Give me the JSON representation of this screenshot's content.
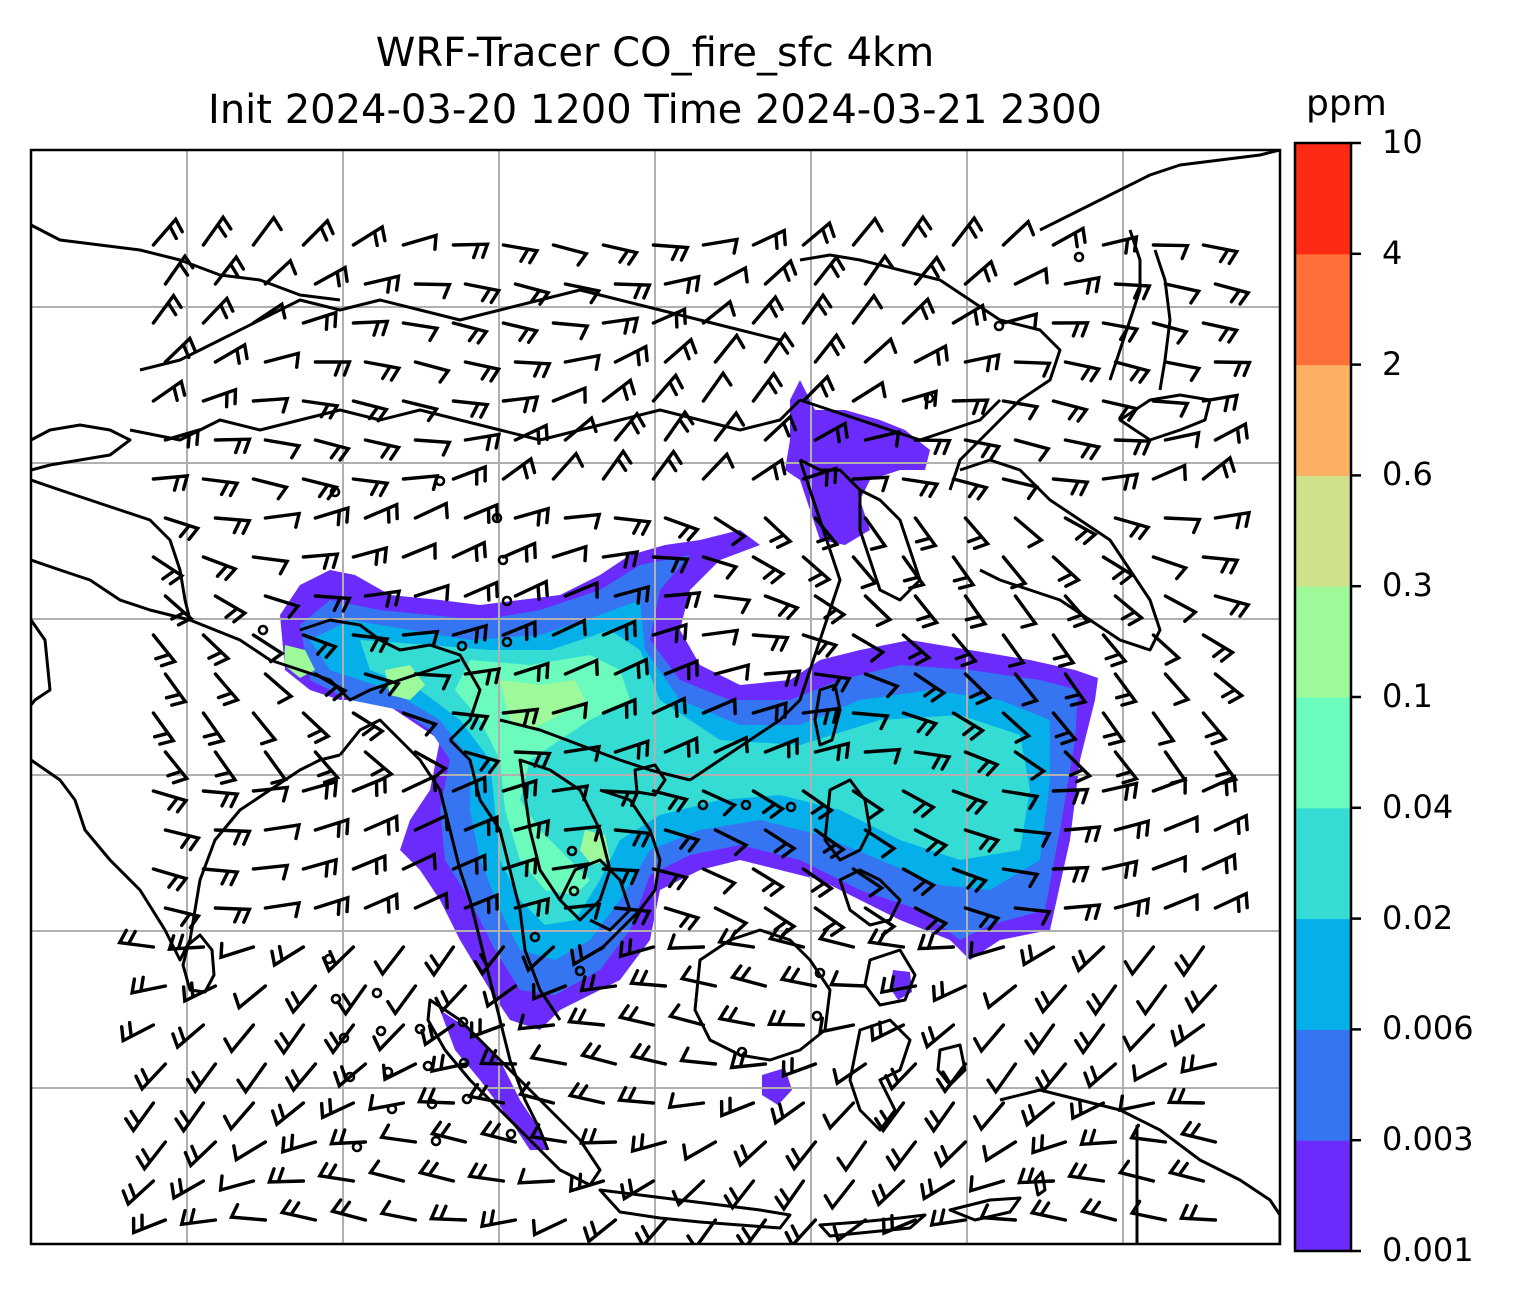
{
  "title": {
    "line1": "WRF-Tracer CO_fire_sfc 4km",
    "line2": "Init 2024-03-20 1200 Time 2024-03-21 2300"
  },
  "colorbar": {
    "unit": "ppm",
    "levels": [
      "0.001",
      "0.003",
      "0.006",
      "0.02",
      "0.04",
      "0.1",
      "0.3",
      "0.6",
      "2",
      "4",
      "10"
    ],
    "colors": [
      "#6a2bfb",
      "#3575f2",
      "#05b0ea",
      "#34dcd3",
      "#6bfbbd",
      "#9df99a",
      "#cfe18a",
      "#fdaf62",
      "#ff7039",
      "#fe2a14"
    ]
  },
  "map": {
    "projection": "lat-lon",
    "gridlines": true,
    "coastlines": true,
    "country_borders": true,
    "overlay": "wind barbs",
    "colors": {
      "gridline": "#b0b0b0",
      "coastline": "#000000",
      "barb": "#000000"
    }
  }
}
